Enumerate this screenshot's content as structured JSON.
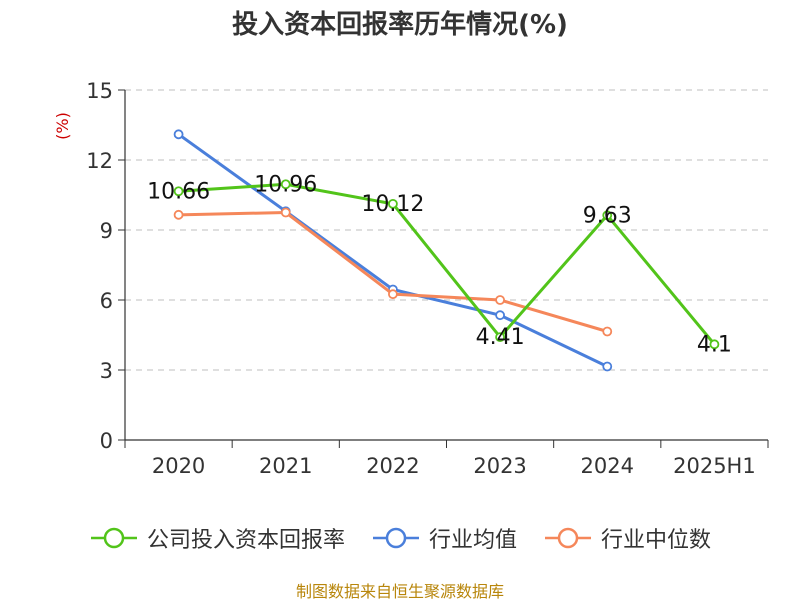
{
  "chart_data": {
    "type": "line",
    "title": "投入资本回报率历年情况(%)",
    "ylabel": "(%)",
    "xlabel": "",
    "categories": [
      "2020",
      "2021",
      "2022",
      "2023",
      "2024",
      "2025H1"
    ],
    "ylim": [
      0,
      15
    ],
    "yticks": [
      "0",
      "3",
      "6",
      "9",
      "12",
      "15"
    ],
    "grid": true,
    "legend_position": "bottom",
    "series": [
      {
        "name": "公司投入资本回报率",
        "color": "#52c41a",
        "values": [
          10.66,
          10.96,
          10.12,
          4.41,
          9.63,
          4.1
        ],
        "labels": [
          "10.66",
          "10.96",
          "10.12",
          "4.41",
          "9.63",
          "4.1"
        ]
      },
      {
        "name": "行业均值",
        "color": "#4a7fdb",
        "values": [
          13.1,
          9.8,
          6.45,
          5.35,
          3.15,
          null
        ]
      },
      {
        "name": "行业中位数",
        "color": "#f5875a",
        "values": [
          9.65,
          9.75,
          6.25,
          6.0,
          4.65,
          null
        ]
      }
    ]
  },
  "source_note": "制图数据来自恒生聚源数据库",
  "colors": {
    "axis": "#333333",
    "grid": "#cccccc",
    "ylabel": "#cc0000",
    "source": "#b8860b"
  }
}
